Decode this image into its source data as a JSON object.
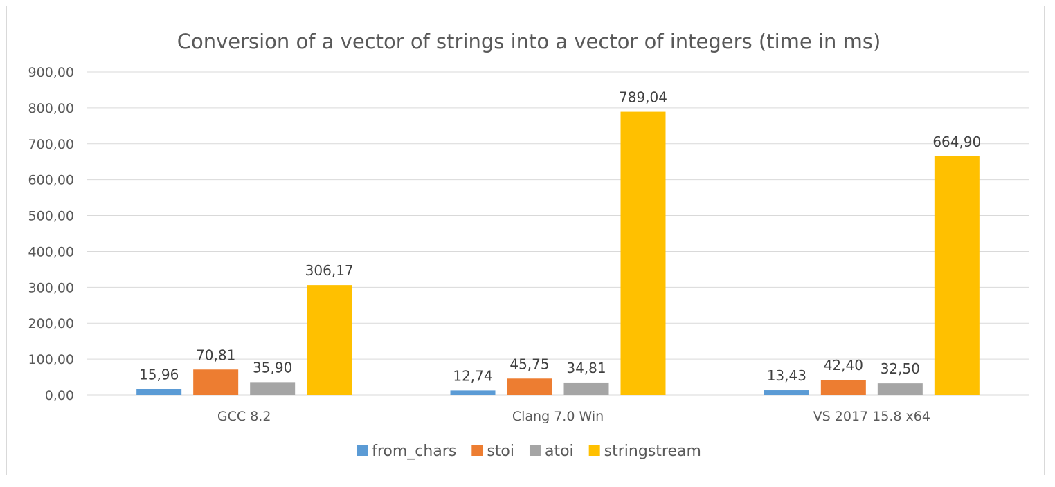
{
  "chart_data": {
    "type": "bar",
    "title": "Conversion of a vector of strings into a vector of integers (time in ms)",
    "xlabel": "",
    "ylabel": "",
    "categories": [
      "GCC 8.2",
      "Clang 7.0 Win",
      "VS 2017 15.8 x64"
    ],
    "series": [
      {
        "name": "from_chars",
        "color": "#5b9bd5",
        "values": [
          15.96,
          12.74,
          13.43
        ],
        "labels": [
          "15,96",
          "12,74",
          "13,43"
        ]
      },
      {
        "name": "stoi",
        "color": "#ed7d31",
        "values": [
          70.81,
          45.75,
          42.4
        ],
        "labels": [
          "70,81",
          "45,75",
          "42,40"
        ]
      },
      {
        "name": "atoi",
        "color": "#a5a5a5",
        "values": [
          35.9,
          34.81,
          32.5
        ],
        "labels": [
          "35,90",
          "34,81",
          "32,50"
        ]
      },
      {
        "name": "stringstream",
        "color": "#ffc000",
        "values": [
          306.17,
          789.04,
          664.9
        ],
        "labels": [
          "306,17",
          "789,04",
          "664,90"
        ]
      }
    ],
    "ylim": [
      0,
      900
    ],
    "yticks": [
      0,
      100,
      200,
      300,
      400,
      500,
      600,
      700,
      800,
      900
    ],
    "ytick_labels": [
      "0,00",
      "100,00",
      "200,00",
      "300,00",
      "400,00",
      "500,00",
      "600,00",
      "700,00",
      "800,00",
      "900,00"
    ],
    "grid": true,
    "legend_position": "bottom"
  }
}
